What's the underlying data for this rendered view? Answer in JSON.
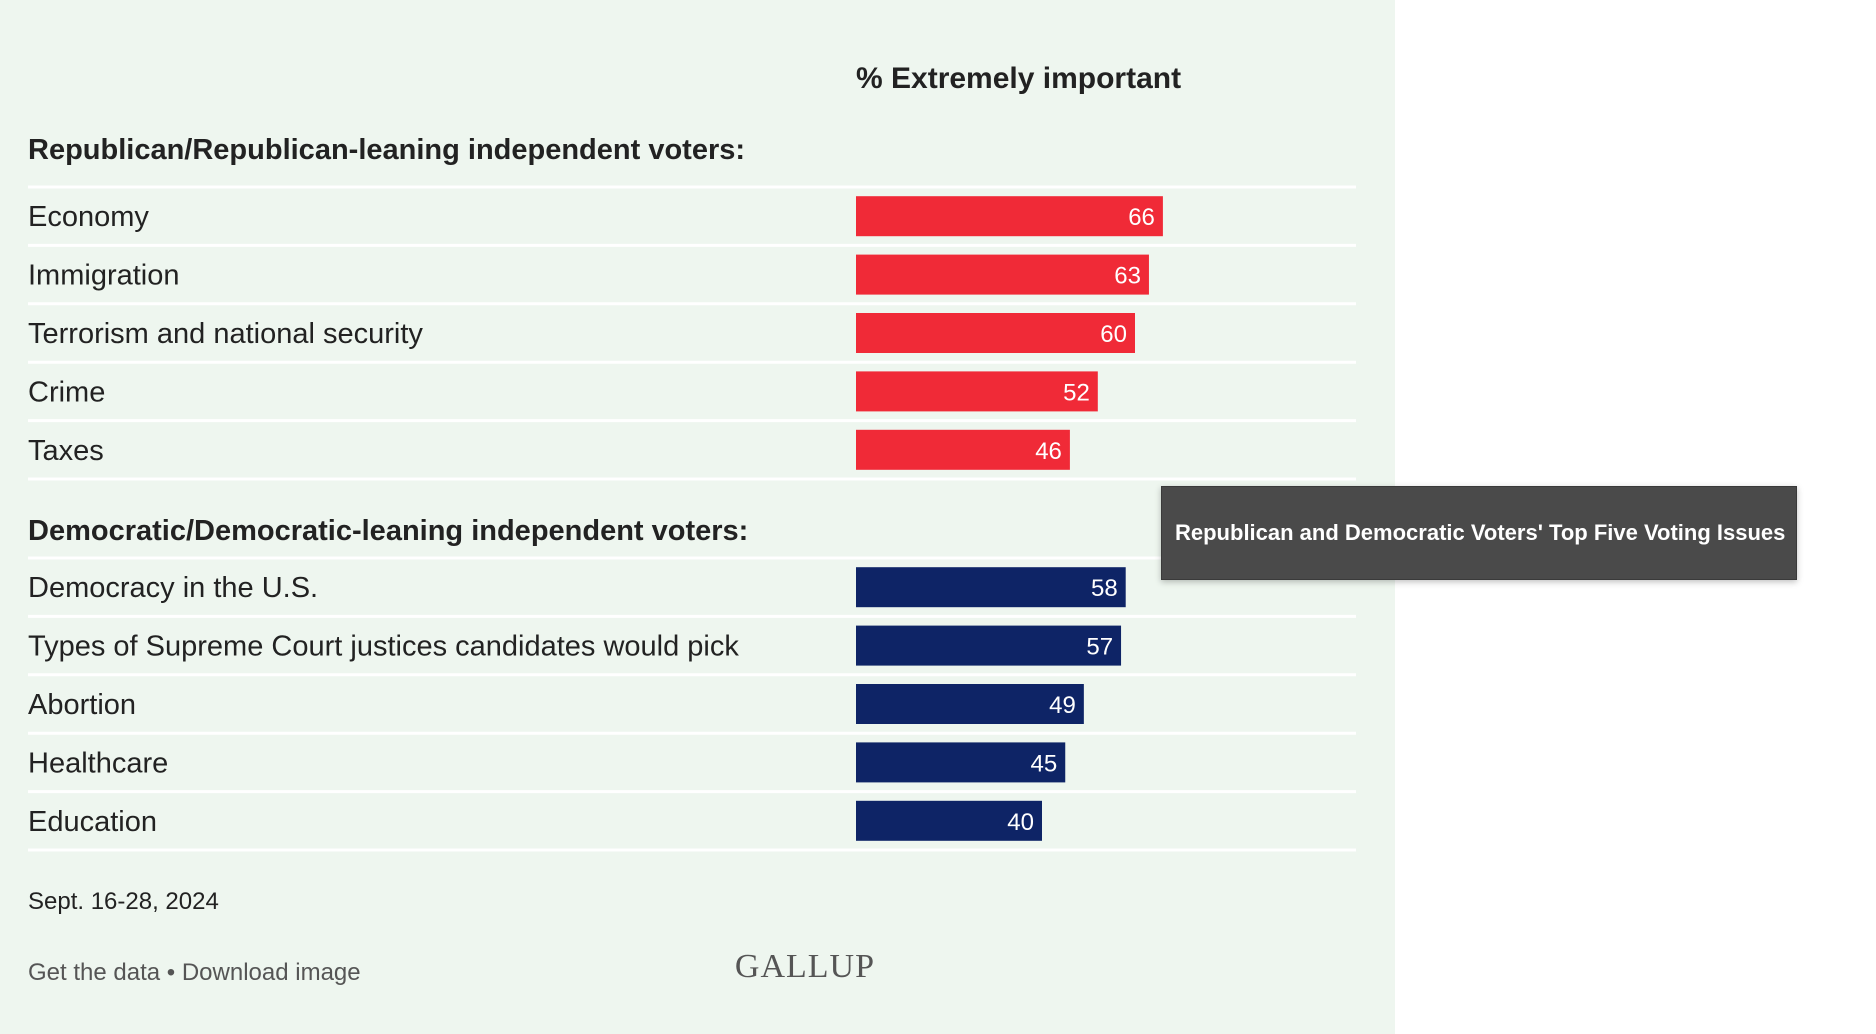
{
  "header": "% Extremely important",
  "tooltip": "Republican and Democratic Voters' Top Five Voting Issues",
  "date": "Sept. 16-28, 2024",
  "footer": {
    "get_data": "Get the data",
    "separator": " • ",
    "download": "Download image"
  },
  "brand": "GALLUP",
  "colors": {
    "republican": "#f02a37",
    "democratic": "#0e2466",
    "background": "#eef6ef"
  },
  "chart_data": {
    "type": "bar",
    "orientation": "horizontal",
    "xlim": [
      0,
      100
    ],
    "groups": [
      {
        "name": "Republican/Republican-leaning independent voters:",
        "color": "#f02a37",
        "categories": [
          "Economy",
          "Immigration",
          "Terrorism and national security",
          "Crime",
          "Taxes"
        ],
        "values": [
          66,
          63,
          60,
          52,
          46
        ]
      },
      {
        "name": "Democratic/Democratic-leaning independent voters:",
        "color": "#0e2466",
        "categories": [
          "Democracy in the U.S.",
          "Types of Supreme Court justices candidates would pick",
          "Abortion",
          "Healthcare",
          "Education"
        ],
        "values": [
          58,
          57,
          49,
          45,
          40
        ]
      }
    ]
  }
}
